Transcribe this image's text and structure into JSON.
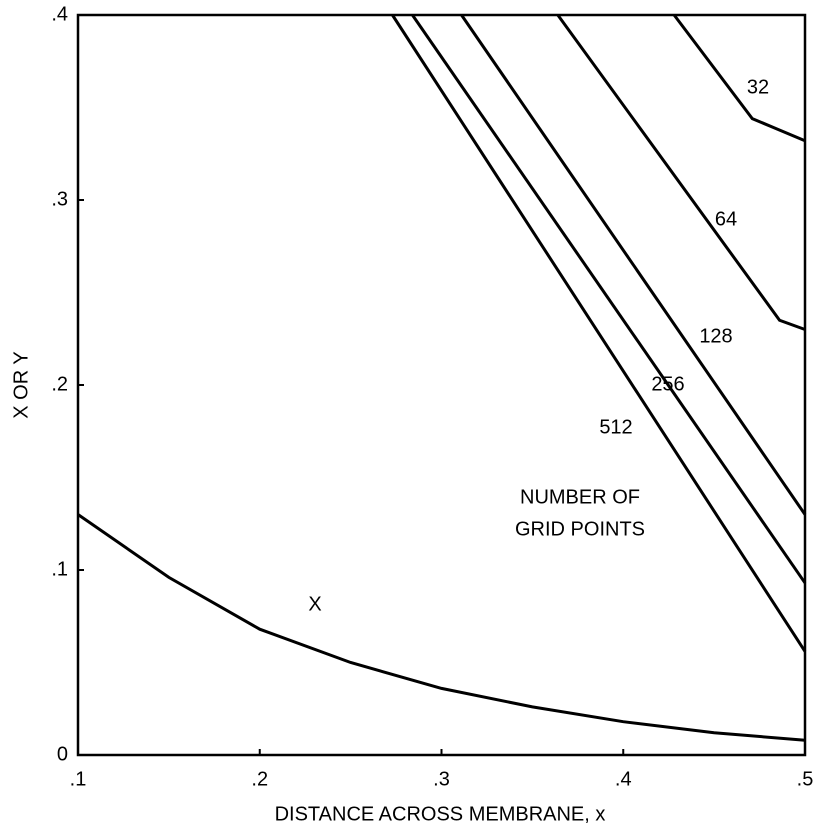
{
  "chart_data": {
    "type": "line",
    "xlabel": "DISTANCE ACROSS MEMBRANE, x",
    "ylabel": "X OR Y",
    "xlim": [
      0.1,
      0.5
    ],
    "ylim": [
      0,
      0.4
    ],
    "xticks": [
      {
        "value": 0.1,
        "label": ".1"
      },
      {
        "value": 0.2,
        "label": ".2"
      },
      {
        "value": 0.3,
        "label": ".3"
      },
      {
        "value": 0.4,
        "label": ".4"
      },
      {
        "value": 0.5,
        "label": ".5"
      }
    ],
    "yticks": [
      0,
      {
        "value": 0.1,
        "label": ".1"
      },
      {
        "value": 0.2,
        "label": ".2"
      },
      {
        "value": 0.3,
        "label": ".3"
      },
      {
        "value": 0.4,
        "label": ".4"
      }
    ],
    "annotations": [
      "NUMBER OF",
      "GRID POINTS"
    ],
    "series": [
      {
        "name": "32",
        "color": "#000000",
        "x": [
          0.428,
          0.471,
          0.5
        ],
        "values": [
          0.4,
          0.344,
          0.332
        ]
      },
      {
        "name": "64",
        "color": "#000000",
        "x": [
          0.364,
          0.486,
          0.5
        ],
        "values": [
          0.4,
          0.235,
          0.23
        ]
      },
      {
        "name": "128",
        "color": "#000000",
        "x": [
          0.311,
          0.5
        ],
        "values": [
          0.4,
          0.13
        ]
      },
      {
        "name": "256",
        "color": "#000000",
        "x": [
          0.284,
          0.5
        ],
        "values": [
          0.4,
          0.093
        ]
      },
      {
        "name": "512",
        "color": "#000000",
        "x": [
          0.273,
          0.5
        ],
        "values": [
          0.4,
          0.056
        ]
      },
      {
        "name": "X",
        "color": "#000000",
        "x": [
          0.1,
          0.15,
          0.2,
          0.25,
          0.3,
          0.35,
          0.4,
          0.45,
          0.5
        ],
        "values": [
          0.13,
          0.096,
          0.068,
          0.05,
          0.036,
          0.026,
          0.018,
          0.012,
          0.008
        ]
      }
    ]
  }
}
